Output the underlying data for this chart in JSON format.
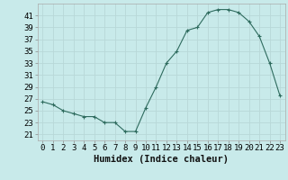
{
  "x": [
    0,
    1,
    2,
    3,
    4,
    5,
    6,
    7,
    8,
    9,
    10,
    11,
    12,
    13,
    14,
    15,
    16,
    17,
    18,
    19,
    20,
    21,
    22,
    23
  ],
  "y": [
    26.5,
    26,
    25,
    24.5,
    24,
    24,
    23,
    23,
    21.5,
    21.5,
    25.5,
    29,
    33,
    35,
    38.5,
    39,
    41.5,
    42,
    42,
    41.5,
    40,
    37.5,
    33,
    27.5
  ],
  "line_color": "#2e6b5e",
  "marker_color": "#2e6b5e",
  "bg_color": "#c8eaea",
  "grid_color": "#b8d8d8",
  "xlabel": "Humidex (Indice chaleur)",
  "ylabel_ticks": [
    21,
    23,
    25,
    27,
    29,
    31,
    33,
    35,
    37,
    39,
    41
  ],
  "ylim": [
    20.0,
    43.0
  ],
  "xlim": [
    -0.5,
    23.5
  ],
  "tick_fontsize": 6.5,
  "xlabel_fontsize": 7.5
}
